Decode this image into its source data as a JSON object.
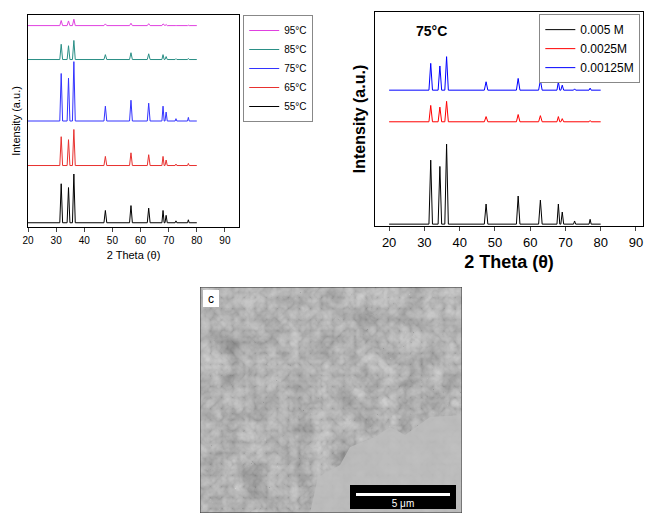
{
  "chart_data": [
    {
      "type": "line",
      "x_label": "2 Theta (θ)",
      "y_label": "Intensity (a.u.)",
      "x": [
        20,
        31.3,
        31.8,
        32.3,
        33.9,
        34.4,
        34.9,
        35.8,
        36.3,
        36.8,
        47.0,
        47.5,
        48.0,
        56.1,
        56.6,
        57.1,
        62.4,
        62.9,
        63.4,
        67.6,
        68.0,
        68.4,
        68.7,
        69.1,
        69.5,
        72.3,
        72.6,
        72.9,
        76.7,
        77.0,
        77.3,
        80
      ],
      "series": [
        {
          "name": "95°C",
          "color": "#e040e0",
          "values": [
            95,
            95,
            97.4,
            95,
            95,
            97.2,
            95,
            95,
            98,
            95,
            95,
            95.8,
            95,
            95,
            96.1,
            95,
            95,
            95.9,
            95,
            95,
            95.8,
            95,
            95,
            95.5,
            95,
            95,
            95.1,
            95,
            95,
            95.2,
            95,
            95
          ]
        },
        {
          "name": "85°C",
          "color": "#2a8f86",
          "values": [
            79,
            79,
            86.2,
            79,
            79,
            85.5,
            79,
            79,
            88,
            79,
            79,
            81.3,
            79,
            79,
            82.2,
            79,
            79,
            81.7,
            79,
            79,
            81.3,
            79,
            79,
            80.4,
            79,
            79,
            79.4,
            79,
            79,
            79.5,
            79,
            79
          ]
        },
        {
          "name": "75°C",
          "color": "#3333ff",
          "values": [
            50,
            50,
            72.4,
            50,
            50,
            70.2,
            50,
            50,
            78,
            50,
            50,
            57,
            50,
            50,
            59.8,
            50,
            50,
            58.4,
            50,
            50,
            57,
            50,
            50,
            54.2,
            50,
            50,
            51.1,
            50,
            50,
            51.7,
            50,
            50
          ]
        },
        {
          "name": "65°C",
          "color": "#e8312f",
          "values": [
            29,
            29,
            42.6,
            29,
            29,
            41.2,
            29,
            29,
            46,
            29,
            29,
            33.3,
            29,
            29,
            35,
            29,
            29,
            34.1,
            29,
            29,
            33.3,
            29,
            29,
            31.6,
            29,
            29,
            29.7,
            29,
            29,
            30,
            29,
            29
          ]
        },
        {
          "name": "55°C",
          "color": "#000000",
          "values": [
            2,
            2,
            20.4,
            2,
            2,
            18.6,
            2,
            2,
            25,
            2,
            2,
            7.8,
            2,
            2,
            10.1,
            2,
            2,
            8.9,
            2,
            2,
            7.8,
            2,
            2,
            5.5,
            2,
            2,
            2.9,
            2,
            2,
            3.4,
            2,
            2
          ]
        }
      ],
      "xlim": [
        20,
        95
      ],
      "xticks": [
        20,
        30,
        40,
        50,
        60,
        70,
        80,
        90
      ],
      "ylim": [
        0,
        100
      ],
      "tick_labels": "x",
      "legend": "right",
      "grid": false
    },
    {
      "type": "line",
      "x_label": "2 Theta (θ)",
      "y_label": "Intensity (a.u.)",
      "annotations": [
        {
          "text": "75°C",
          "x": 27,
          "y": 105
        }
      ],
      "x": [
        20,
        31.3,
        31.8,
        32.3,
        33.9,
        34.4,
        34.9,
        35.8,
        36.3,
        36.8,
        47.0,
        47.5,
        48.0,
        56.1,
        56.6,
        57.1,
        62.4,
        62.9,
        63.4,
        67.6,
        68.0,
        68.4,
        68.7,
        69.1,
        69.5,
        72.3,
        72.6,
        72.9,
        76.7,
        77.0,
        77.3,
        80
      ],
      "series": [
        {
          "name": "0.005 M",
          "color": "#000000",
          "values": [
            1,
            1,
            35.4,
            1,
            1,
            32,
            1,
            1,
            44,
            1,
            1,
            11.8,
            1,
            1,
            16.1,
            1,
            1,
            13.9,
            1,
            1,
            11.8,
            1,
            1,
            7.5,
            1,
            1,
            2.7,
            1,
            1,
            3.6,
            1,
            1
          ]
        },
        {
          "name": "0.0025M",
          "color": "#ff0000",
          "values": [
            56,
            56,
            64.8,
            56,
            56,
            63.9,
            56,
            56,
            67,
            56,
            56,
            58.8,
            56,
            56,
            59.9,
            56,
            56,
            59.3,
            56,
            56,
            58.8,
            56,
            56,
            57.7,
            56,
            56,
            56.4,
            56,
            56,
            56.7,
            56,
            56
          ]
        },
        {
          "name": "0.00125M",
          "color": "#0000ff",
          "values": [
            73,
            73,
            87.4,
            73,
            73,
            86,
            73,
            73,
            91,
            73,
            73,
            77.5,
            73,
            73,
            79.3,
            73,
            73,
            78.4,
            73,
            73,
            77.5,
            73,
            73,
            75.7,
            73,
            73,
            73.7,
            73,
            73,
            74.1,
            73,
            73
          ]
        }
      ],
      "xlim": [
        16,
        92
      ],
      "xticks": [
        20,
        30,
        40,
        50,
        60,
        70,
        80,
        90
      ],
      "ylim": [
        0,
        115
      ],
      "tick_labels": "x",
      "legend": "top right",
      "grid": false
    }
  ],
  "image_panel": {
    "label": "c",
    "scale_bar": "5 μm"
  }
}
